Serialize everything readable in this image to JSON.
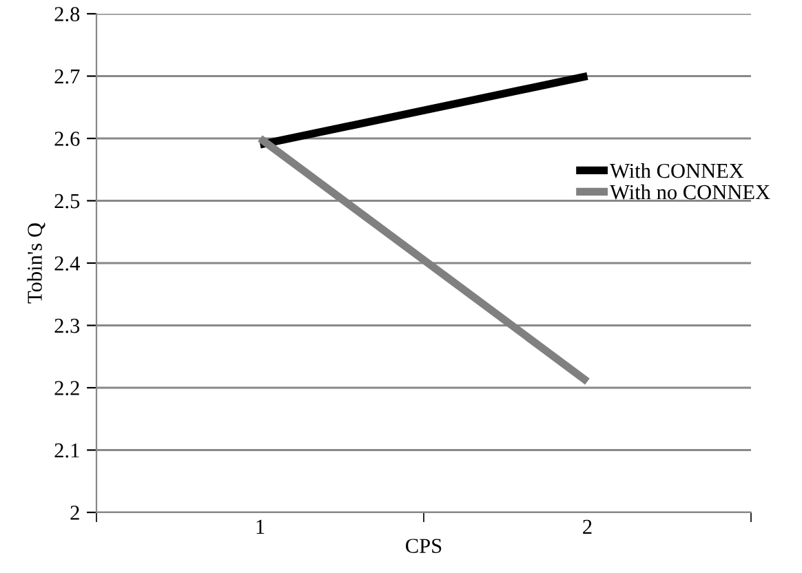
{
  "chart_data": {
    "type": "line",
    "xlabel": "CPS",
    "ylabel": "Tobin's Q",
    "categories": [
      "1",
      "2"
    ],
    "series": [
      {
        "name": "With CONNEX",
        "color": "#000000",
        "values": [
          2.59,
          2.7
        ]
      },
      {
        "name": "With no CONNEX",
        "color": "#808080",
        "values": [
          2.6,
          2.21
        ]
      }
    ],
    "ylim": [
      2,
      2.8
    ],
    "yticks": [
      2,
      2.1,
      2.2,
      2.3,
      2.4,
      2.5,
      2.6,
      2.7,
      2.8
    ],
    "grid": "y",
    "legend": "right",
    "marker": "none",
    "line_style": "solid"
  }
}
